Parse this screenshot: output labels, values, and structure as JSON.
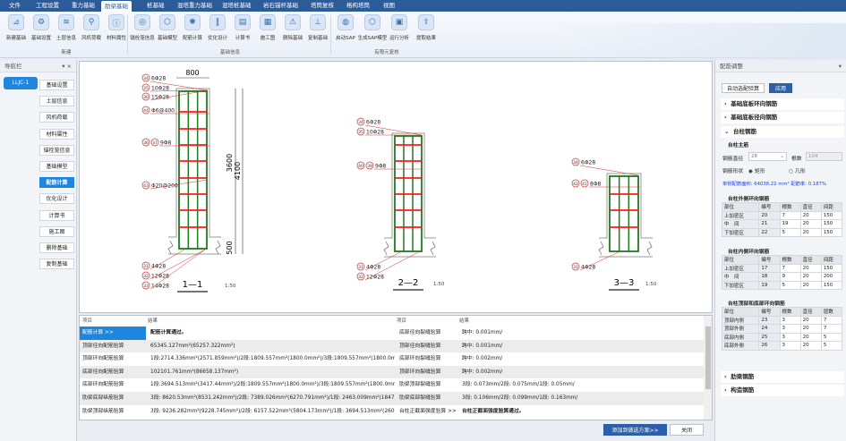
{
  "menu": {
    "items": [
      "文件",
      "工程设置",
      "重力基础",
      "肋梁基础",
      "桩基础",
      "混塔重力基础",
      "混塔桩基础",
      "岩石锚杆基础",
      "塔筒复核",
      "格构塔筒",
      "视图"
    ],
    "active": "肋梁基础"
  },
  "ribbon": {
    "groups": [
      {
        "label": "新建",
        "buttons": [
          "新建基础",
          "基础设置",
          "土层信息",
          "风机荷载",
          "材料属性"
        ]
      },
      {
        "label": "基础信息",
        "buttons": [
          "锚栓笼信息",
          "基础模型",
          "配筋计算",
          "优化设计",
          "计算书",
          "施工图",
          "删除基础",
          "复制基础"
        ]
      },
      {
        "label": "有限元复核",
        "buttons": [
          "启动SAP",
          "生成SAP模型",
          "运行分析",
          "提取结果"
        ]
      }
    ]
  },
  "nav": {
    "title": "导航栏",
    "tree_item": "LLJC-1",
    "items": [
      "基础设置",
      "土层信息",
      "风机荷载",
      "材料属性",
      "锚栓笼信息",
      "基础模型",
      "配筋计算",
      "优化设计",
      "计算书",
      "施工图",
      "删除基础",
      "复制基础"
    ],
    "active": "配筋计算"
  },
  "drawing": {
    "s1": {
      "title": "1—1",
      "scale": "1:50",
      "width_dim": "800",
      "dim_a": "3600",
      "dim_b": "4100",
      "dim_c": "500",
      "labels": [
        [
          "34",
          "6Φ28"
        ],
        [
          "35",
          "10Φ28"
        ],
        [
          "36",
          "15Φ28"
        ],
        [
          "44",
          "Φ6@400"
        ],
        [
          "36 37",
          "9Φ8"
        ],
        [
          "43",
          "Φ20@200"
        ],
        [
          "31",
          "4Φ28"
        ],
        [
          "32",
          "12Φ28"
        ],
        [
          "33",
          "14Φ28"
        ]
      ]
    },
    "s2": {
      "title": "2—2",
      "scale": "1:50",
      "labels": [
        [
          "34",
          "6Φ28"
        ],
        [
          "35",
          "10Φ28"
        ],
        [
          "40 39",
          "9Φ8"
        ],
        [
          "31",
          "4Φ28"
        ],
        [
          "32",
          "12Φ28"
        ]
      ]
    },
    "s3": {
      "title": "3—3",
      "scale": "1:50",
      "labels": [
        [
          "34",
          "6Φ28"
        ],
        [
          "42 41",
          "8Φ8"
        ],
        [
          "31",
          "4Φ28"
        ]
      ]
    }
  },
  "results": {
    "headers": [
      "项目",
      "结果",
      "项目",
      "结果"
    ],
    "rows": [
      [
        "配筋计算 >>",
        "配筋计算通过。",
        "底部径向裂缝验算",
        "跨中: 0.001mm/"
      ],
      [
        "顶部径向配筋验算",
        "65345.127mm²(65257.322mm²)",
        "顶部径向裂缝验算",
        "跨中: 0.001mm/"
      ],
      [
        "顶部环向配筋验算",
        "1段:2714.336mm²(2571.859mm²)/2段:1809.557mm²(1800.0mm²)/3段:1809.557mm²(1800.0mm...",
        "底部环向裂缝验算",
        "跨中: 0.002mm/"
      ],
      [
        "底部径向配筋验算",
        "102101.761mm²(86658.137mm²)",
        "顶部环向裂缝验算",
        "跨中: 0.002mm/"
      ],
      [
        "底部环向配筋验算",
        "1段:3694.513mm²(3417.44mm²)/2段:1809.557mm²(1800.0mm²)/3段:1809.557mm²(1800.0mm²)/",
        "肋梁顶部裂缝验算",
        "3段: 0.073mm/2段: 0.075mm/1段: 0.05mm/"
      ],
      [
        "肋梁底部纵筋验算",
        "3段: 8620.53mm²(8531.242mm²)/2段: 7389.026mm²(6270.791mm²)/1段: 2463.009mm²(1847...",
        "肋梁底部裂缝验算",
        "3段: 0.106mm/2段: 0.099mm/1段: 0.163mm/"
      ],
      [
        "肋梁顶部纵筋验算",
        "3段: 9236.282mm²(9228.745mm²)/2段: 6157.522mm²(5804.173mm²)/1段: 3694.513mm²(260...",
        "台柱正截面强度验算 >>",
        "台柱正截面强度验算通过。"
      ]
    ],
    "add_button": "添加到做选方案>>",
    "close_button": "关闭"
  },
  "right": {
    "title": "配筋调整",
    "auto_button": "自动选配验算",
    "apply_button": "应用",
    "sections": [
      "基础底板环向钢筋",
      "基础底板径向钢筋",
      "台柱钢筋",
      "肋梁钢筋",
      "构造钢筋"
    ],
    "main": {
      "title": "台柱主筋",
      "dia_label": "钢筋直径",
      "dia_value": "28",
      "count_label": "根数",
      "count_value": "104",
      "shape_label": "钢筋形状",
      "shape_opt1": "矩形",
      "shape_opt2": "几形",
      "selected": "矩形",
      "summary": "单侧配筋面积: 64038.22 mm²  配筋率: 0.187%"
    },
    "outer": {
      "title": "台柱外侧环向钢筋",
      "headers": [
        "部位",
        "编号",
        "根数",
        "直径",
        "间距"
      ],
      "rows": [
        [
          "上加密区",
          "20",
          "7",
          "20",
          "150"
        ],
        [
          "中　间",
          "21",
          "19",
          "20",
          "150"
        ],
        [
          "下加密区",
          "22",
          "5",
          "20",
          "150"
        ]
      ]
    },
    "inner": {
      "title": "台柱内侧环向钢筋",
      "headers": [
        "部位",
        "编号",
        "根数",
        "直径",
        "间距"
      ],
      "rows": [
        [
          "上加密区",
          "17",
          "7",
          "20",
          "150"
        ],
        [
          "中　间",
          "18",
          "9",
          "20",
          "200"
        ],
        [
          "下加密区",
          "19",
          "5",
          "20",
          "150"
        ]
      ]
    },
    "topbot": {
      "title": "台柱顶部和底部环向钢筋",
      "headers": [
        "部位",
        "编号",
        "根数",
        "直径",
        "层数"
      ],
      "rows": [
        [
          "顶部内侧",
          "23",
          "3",
          "20",
          "7"
        ],
        [
          "顶部外侧",
          "24",
          "3",
          "20",
          "7"
        ],
        [
          "底部内侧",
          "25",
          "3",
          "20",
          "5"
        ],
        [
          "底部外侧",
          "26",
          "3",
          "20",
          "5"
        ]
      ]
    }
  },
  "colors": {
    "accent": "#1f86e0",
    "menubar": "#2c5b9a",
    "rebar_main": "#1e7a1e",
    "rebar_tie": "#ff1a1a",
    "label": "#d03030"
  }
}
